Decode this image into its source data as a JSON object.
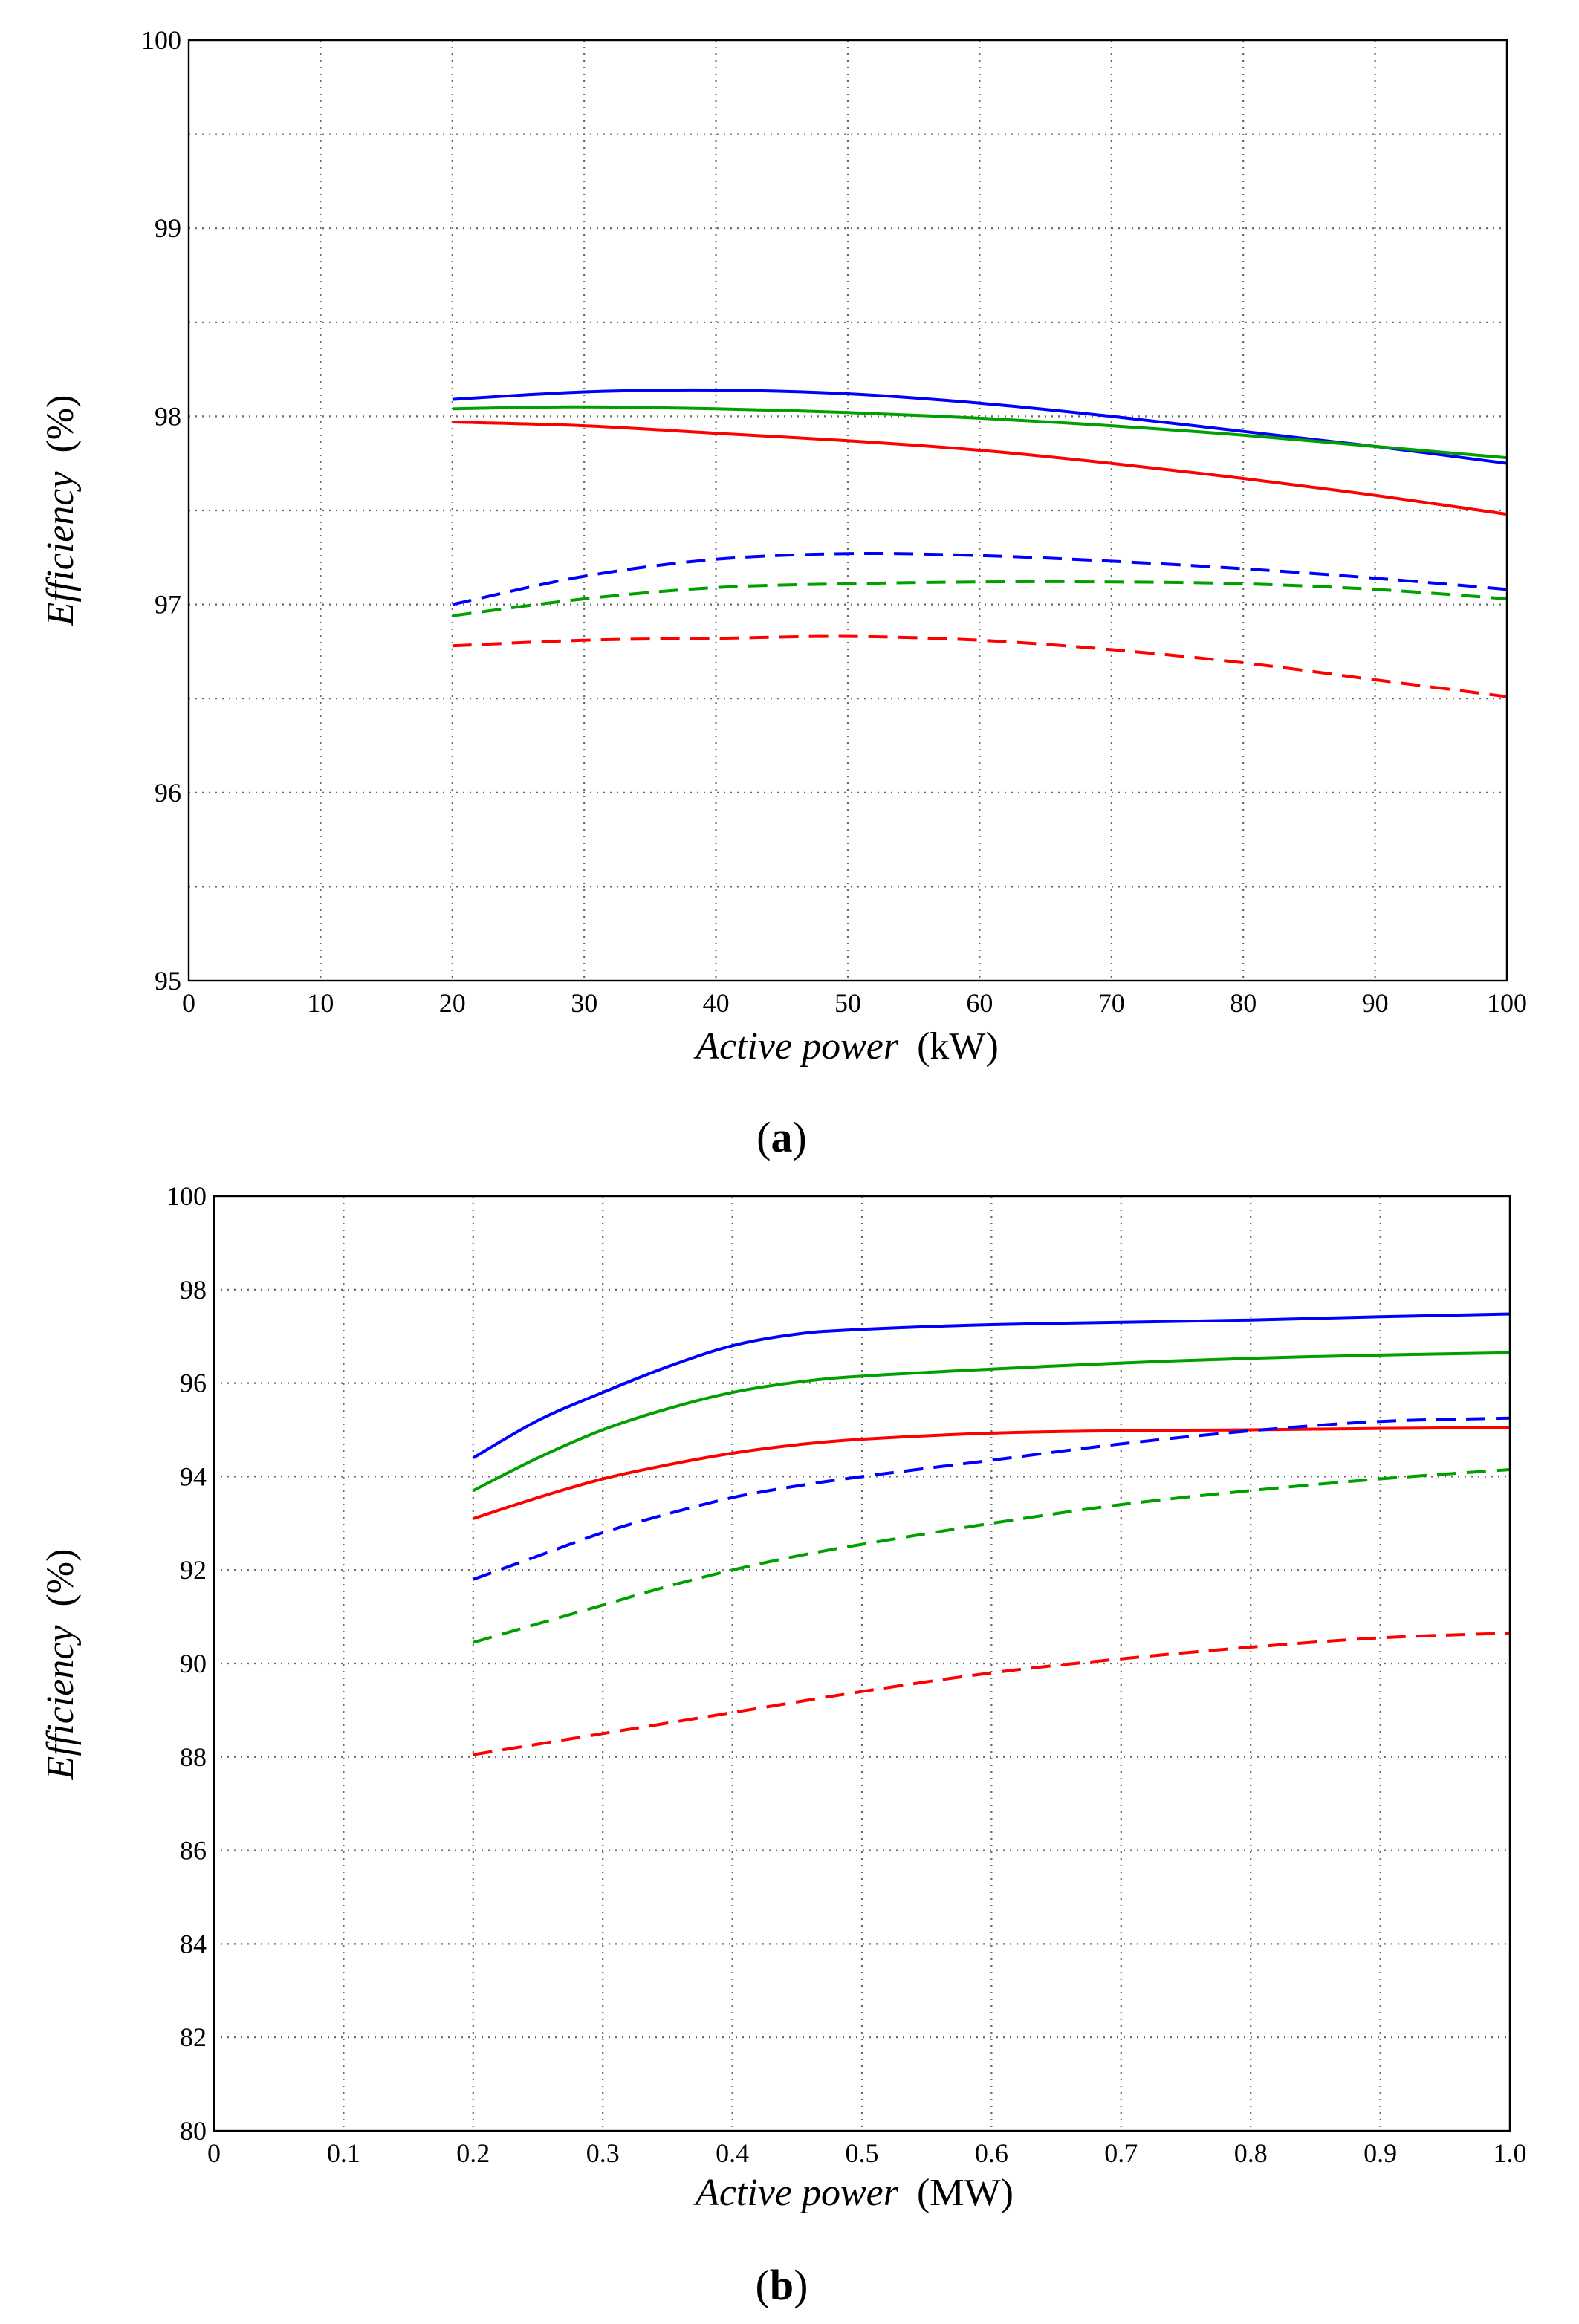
{
  "chart_data": [
    {
      "type": "line",
      "panel_label": "a",
      "title": "",
      "xlabel": {
        "italic": "Active power",
        "unit": "(kW)"
      },
      "ylabel": {
        "italic": "Efficiency",
        "unit": "(%)"
      },
      "xlim": [
        0,
        100
      ],
      "ylim": [
        95,
        100
      ],
      "xticks": [
        0,
        10,
        20,
        30,
        40,
        50,
        60,
        70,
        80,
        90,
        100
      ],
      "xtick_labels": [
        "0",
        "10",
        "20",
        "30",
        "40",
        "50",
        "60",
        "70",
        "80",
        "90",
        "100"
      ],
      "yticks": [
        95,
        96,
        97,
        98,
        99,
        100
      ],
      "ytick_labels": [
        "95",
        "96",
        "97",
        "98",
        "99",
        "100"
      ],
      "x_grid": [
        10,
        20,
        30,
        40,
        50,
        60,
        70,
        80,
        90
      ],
      "y_grid": [
        95.5,
        96,
        96.5,
        97,
        97.5,
        98,
        98.5,
        99,
        99.5
      ],
      "grid": true,
      "legend": "none",
      "series": [
        {
          "name": "blue solid",
          "color": "#0000ff",
          "style": "solid",
          "x": [
            20,
            30,
            40,
            50,
            60,
            70,
            80,
            90,
            100
          ],
          "y": [
            98.09,
            98.13,
            98.14,
            98.12,
            98.07,
            98.0,
            97.92,
            97.84,
            97.75
          ]
        },
        {
          "name": "green solid",
          "color": "#00a000",
          "style": "solid",
          "x": [
            20,
            30,
            40,
            50,
            60,
            70,
            80,
            90,
            100
          ],
          "y": [
            98.04,
            98.05,
            98.04,
            98.02,
            97.99,
            97.95,
            97.9,
            97.84,
            97.78
          ]
        },
        {
          "name": "red solid",
          "color": "#ff0000",
          "style": "solid",
          "x": [
            20,
            30,
            40,
            50,
            60,
            70,
            80,
            90,
            100
          ],
          "y": [
            97.97,
            97.95,
            97.91,
            97.87,
            97.82,
            97.75,
            97.67,
            97.58,
            97.48
          ]
        },
        {
          "name": "blue dashed",
          "color": "#0000ff",
          "style": "dashed",
          "x": [
            20,
            30,
            40,
            50,
            60,
            70,
            80,
            90,
            100
          ],
          "y": [
            97.0,
            97.15,
            97.24,
            97.27,
            97.26,
            97.23,
            97.19,
            97.14,
            97.08
          ]
        },
        {
          "name": "green dashed",
          "color": "#00a000",
          "style": "dashed",
          "x": [
            20,
            30,
            40,
            50,
            60,
            70,
            80,
            90,
            100
          ],
          "y": [
            96.94,
            97.03,
            97.09,
            97.11,
            97.12,
            97.12,
            97.11,
            97.08,
            97.03
          ]
        },
        {
          "name": "red dashed",
          "color": "#ff0000",
          "style": "dashed",
          "x": [
            20,
            30,
            40,
            50,
            60,
            70,
            80,
            90,
            100
          ],
          "y": [
            96.78,
            96.81,
            96.82,
            96.83,
            96.81,
            96.76,
            96.69,
            96.6,
            96.51
          ]
        }
      ]
    },
    {
      "type": "line",
      "panel_label": "b",
      "title": "",
      "xlabel": {
        "italic": "Active power",
        "unit": "(MW)"
      },
      "ylabel": {
        "italic": "Efficiency",
        "unit": "(%)"
      },
      "xlim": [
        0,
        1.0
      ],
      "ylim": [
        80,
        100
      ],
      "xticks": [
        0,
        0.1,
        0.2,
        0.3,
        0.4,
        0.5,
        0.6,
        0.7,
        0.8,
        0.9,
        1.0
      ],
      "xtick_labels": [
        "0",
        "0.1",
        "0.2",
        "0.3",
        "0.4",
        "0.5",
        "0.6",
        "0.7",
        "0.8",
        "0.9",
        "1.0"
      ],
      "yticks": [
        80,
        82,
        84,
        86,
        88,
        90,
        92,
        94,
        96,
        98,
        100
      ],
      "ytick_labels": [
        "80",
        "82",
        "84",
        "86",
        "88",
        "90",
        "92",
        "94",
        "96",
        "98",
        "100"
      ],
      "x_grid": [
        0.1,
        0.2,
        0.3,
        0.4,
        0.5,
        0.6,
        0.7,
        0.8,
        0.9
      ],
      "y_grid": [
        82,
        84,
        86,
        88,
        90,
        92,
        94,
        96,
        98
      ],
      "grid": true,
      "legend": "none",
      "series": [
        {
          "name": "blue solid",
          "color": "#0000ff",
          "style": "solid",
          "x": [
            0.2,
            0.25,
            0.3,
            0.35,
            0.4,
            0.45,
            0.5,
            0.6,
            0.7,
            0.8,
            0.9,
            1.0
          ],
          "y": [
            94.4,
            95.2,
            95.8,
            96.35,
            96.8,
            97.05,
            97.15,
            97.25,
            97.3,
            97.35,
            97.42,
            97.48
          ]
        },
        {
          "name": "green solid",
          "color": "#00a000",
          "style": "solid",
          "x": [
            0.2,
            0.25,
            0.3,
            0.35,
            0.4,
            0.45,
            0.5,
            0.6,
            0.7,
            0.8,
            0.9,
            1.0
          ],
          "y": [
            93.7,
            94.4,
            95.0,
            95.45,
            95.8,
            96.02,
            96.15,
            96.3,
            96.43,
            96.53,
            96.6,
            96.65
          ]
        },
        {
          "name": "red solid",
          "color": "#ff0000",
          "style": "solid",
          "x": [
            0.2,
            0.25,
            0.3,
            0.35,
            0.4,
            0.45,
            0.5,
            0.6,
            0.7,
            0.8,
            0.9,
            1.0
          ],
          "y": [
            93.1,
            93.55,
            93.95,
            94.25,
            94.5,
            94.68,
            94.8,
            94.93,
            94.98,
            95.0,
            95.03,
            95.05
          ]
        },
        {
          "name": "blue dashed",
          "color": "#0000ff",
          "style": "dashed",
          "x": [
            0.2,
            0.25,
            0.3,
            0.35,
            0.4,
            0.45,
            0.5,
            0.6,
            0.7,
            0.8,
            0.9,
            1.0
          ],
          "y": [
            91.8,
            92.3,
            92.8,
            93.2,
            93.55,
            93.8,
            94.0,
            94.35,
            94.7,
            94.98,
            95.18,
            95.25
          ]
        },
        {
          "name": "green dashed",
          "color": "#00a000",
          "style": "dashed",
          "x": [
            0.2,
            0.25,
            0.3,
            0.35,
            0.4,
            0.45,
            0.5,
            0.6,
            0.7,
            0.8,
            0.9,
            1.0
          ],
          "y": [
            90.45,
            90.85,
            91.25,
            91.65,
            92.0,
            92.3,
            92.55,
            93.0,
            93.4,
            93.7,
            93.95,
            94.15
          ]
        },
        {
          "name": "red dashed",
          "color": "#ff0000",
          "style": "dashed",
          "x": [
            0.2,
            0.3,
            0.4,
            0.5,
            0.6,
            0.7,
            0.8,
            0.9,
            1.0
          ],
          "y": [
            88.05,
            88.5,
            88.95,
            89.4,
            89.8,
            90.1,
            90.35,
            90.55,
            90.65
          ]
        }
      ]
    }
  ]
}
